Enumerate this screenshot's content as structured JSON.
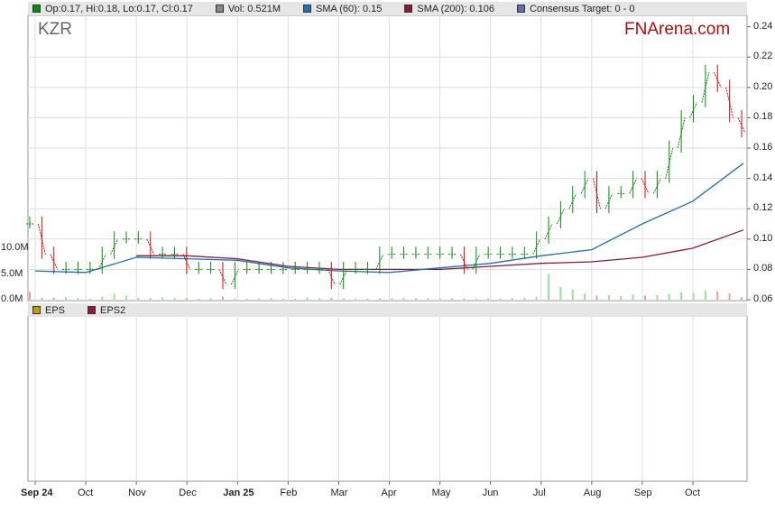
{
  "ticker": "KZR",
  "brand": "FNArena.com",
  "legend": [
    {
      "label": "Op:0.17, Hi:0.18, Lo:0.17, Cl:0.17",
      "color": "#0a8a0a"
    },
    {
      "label": "Vol: 0.521M",
      "color": "#888888"
    },
    {
      "label": "SMA (60): 0.15",
      "color": "#1f6fb5"
    },
    {
      "label": "SMA (200): 0.106",
      "color": "#8b1a3a"
    },
    {
      "label": "Consensus Target: 0 - 0",
      "color": "#6a6aa8"
    }
  ],
  "legend2": [
    {
      "label": "EPS",
      "color": "#b8a000"
    },
    {
      "label": "EPS2",
      "color": "#8b1a3a"
    }
  ],
  "chart_data": {
    "type": "line",
    "x_ticks": [
      "Sep 24",
      "Oct",
      "Nov",
      "Dec",
      "Jan 25",
      "Feb",
      "Mar",
      "Apr",
      "May",
      "Jun",
      "Jul",
      "Aug",
      "Sep",
      "Oct"
    ],
    "y_ticks": [
      "0.24",
      "0.22",
      "0.20",
      "0.18",
      "0.16",
      "0.14",
      "0.12",
      "0.10",
      "0.08",
      "0.06"
    ],
    "ylim": [
      0.06,
      0.24
    ],
    "volume_ticks": [
      "10.0M",
      "5.0M",
      "0.0M"
    ],
    "price_close": [
      0.11,
      0.09,
      0.08,
      0.08,
      0.08,
      0.08,
      0.09,
      0.1,
      0.1,
      0.1,
      0.09,
      0.09,
      0.09,
      0.08,
      0.08,
      0.08,
      0.07,
      0.08,
      0.08,
      0.08,
      0.08,
      0.08,
      0.08,
      0.08,
      0.08,
      0.07,
      0.08,
      0.08,
      0.08,
      0.09,
      0.09,
      0.09,
      0.09,
      0.09,
      0.09,
      0.09,
      0.08,
      0.09,
      0.09,
      0.09,
      0.09,
      0.09,
      0.1,
      0.11,
      0.12,
      0.13,
      0.14,
      0.12,
      0.13,
      0.13,
      0.14,
      0.13,
      0.14,
      0.16,
      0.18,
      0.19,
      0.21,
      0.2,
      0.18,
      0.17
    ],
    "sma60": [
      0.079,
      0.078,
      0.088,
      0.087,
      0.086,
      0.081,
      0.079,
      0.078,
      0.081,
      0.084,
      0.089,
      0.093,
      0.11,
      0.125,
      0.15
    ],
    "sma200": [
      null,
      null,
      0.089,
      0.089,
      0.087,
      0.082,
      0.08,
      0.08,
      0.08,
      0.082,
      0.084,
      0.085,
      0.088,
      0.094,
      0.106
    ],
    "volume_millions": [
      1.5,
      0.3,
      0.4,
      0.5,
      0.3,
      0.2,
      0.6,
      1.2,
      0.8,
      0.4,
      0.3,
      0.5,
      0.4,
      0.3,
      0.2,
      0.3,
      0.6,
      0.2,
      0.2,
      0.2,
      0.3,
      0.2,
      0.2,
      0.5,
      0.3,
      0.4,
      0.3,
      0.2,
      0.2,
      0.3,
      0.3,
      0.4,
      0.3,
      0.3,
      0.2,
      0.3,
      0.2,
      0.2,
      0.3,
      0.2,
      0.3,
      0.4,
      0.6,
      5.0,
      2.5,
      2.0,
      1.2,
      0.8,
      0.9,
      0.7,
      1.0,
      0.8,
      0.9,
      1.1,
      1.5,
      1.3,
      1.8,
      1.6,
      1.2,
      0.5
    ]
  }
}
